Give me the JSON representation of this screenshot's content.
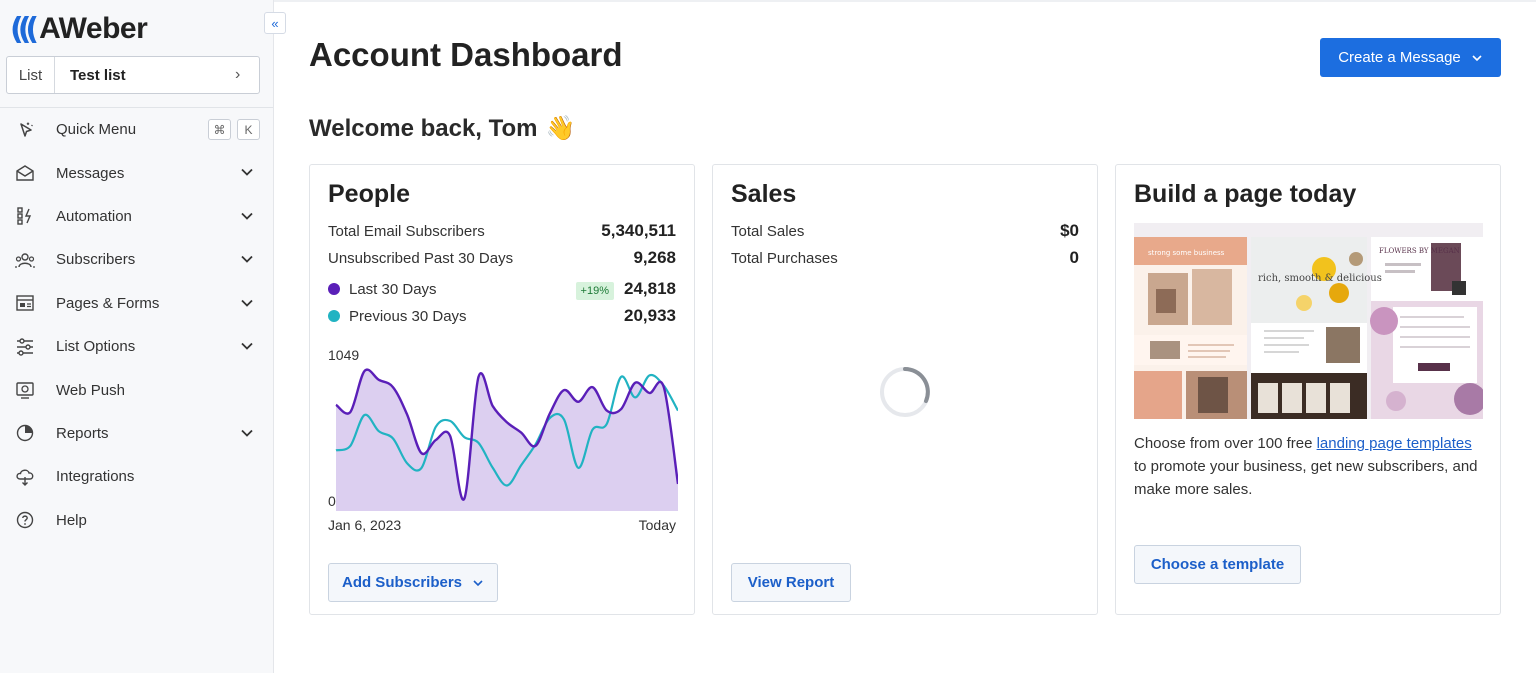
{
  "brand": {
    "name": "AWeber",
    "accent": "#1c6ee0"
  },
  "sidebar": {
    "collapse_icon": "double-chevron-left-icon",
    "list_selector": {
      "label": "List",
      "value": "Test list"
    },
    "items": [
      {
        "label": "Quick Menu",
        "icon": "sparkle-cursor-icon",
        "shortcut": [
          "⌘",
          "K"
        ]
      },
      {
        "label": "Messages",
        "icon": "envelope-icon",
        "expandable": true
      },
      {
        "label": "Automation",
        "icon": "automation-icon",
        "expandable": true
      },
      {
        "label": "Subscribers",
        "icon": "people-icon",
        "expandable": true
      },
      {
        "label": "Pages & Forms",
        "icon": "page-form-icon",
        "expandable": true
      },
      {
        "label": "List Options",
        "icon": "sliders-icon",
        "expandable": true
      },
      {
        "label": "Web Push",
        "icon": "web-push-icon"
      },
      {
        "label": "Reports",
        "icon": "pie-chart-icon",
        "expandable": true
      },
      {
        "label": "Integrations",
        "icon": "cloud-plug-icon"
      },
      {
        "label": "Help",
        "icon": "question-circle-icon"
      }
    ]
  },
  "header": {
    "title": "Account Dashboard",
    "create_button": "Create a Message"
  },
  "welcome": {
    "text": "Welcome back, Tom",
    "emoji": "👋"
  },
  "people": {
    "title": "People",
    "total_label": "Total Email Subscribers",
    "total_value": "5,340,511",
    "unsub_label": "Unsubscribed Past 30 Days",
    "unsub_value": "9,268",
    "last30_label": "Last 30 Days",
    "last30_badge": "+19%",
    "last30_value": "24,818",
    "prev30_label": "Previous 30 Days",
    "prev30_value": "20,933",
    "colors": {
      "last30": "#5a1fb8",
      "prev30": "#21b3c2",
      "fill": "#dccff0"
    },
    "button": "Add Subscribers"
  },
  "chart_data": {
    "type": "area",
    "y_tick_labels": [
      "1049",
      "0"
    ],
    "x_tick_labels": [
      "Jan 6, 2023",
      "Today"
    ],
    "ylim": [
      0,
      1049
    ],
    "series": [
      {
        "name": "Last 30 Days",
        "values": [
          710,
          660,
          940,
          880,
          830,
          640,
          380,
          470,
          500,
          70,
          900,
          700,
          590,
          520,
          430,
          650,
          810,
          730,
          830,
          670,
          680,
          860,
          790,
          830,
          170
        ]
      },
      {
        "name": "Previous 30 Days",
        "values": [
          400,
          430,
          640,
          530,
          480,
          310,
          280,
          560,
          600,
          490,
          450,
          280,
          160,
          300,
          440,
          620,
          610,
          280,
          540,
          580,
          900,
          760,
          910,
          840,
          670
        ]
      }
    ]
  },
  "sales": {
    "title": "Sales",
    "total_sales_label": "Total Sales",
    "total_sales_value": "$0",
    "total_purchases_label": "Total Purchases",
    "total_purchases_value": "0",
    "button": "View Report"
  },
  "build": {
    "title": "Build a page today",
    "desc_before": "Choose from over 100 free ",
    "desc_link": "landing page templates",
    "desc_after": " to promote your business, get new subscribers, and make more sales.",
    "preview": {
      "left_banner": "strong some business",
      "mid_headline": "rich, smooth & delicious",
      "right_headline": "FLOWERS BY MEGAN"
    },
    "button": "Choose a template"
  }
}
